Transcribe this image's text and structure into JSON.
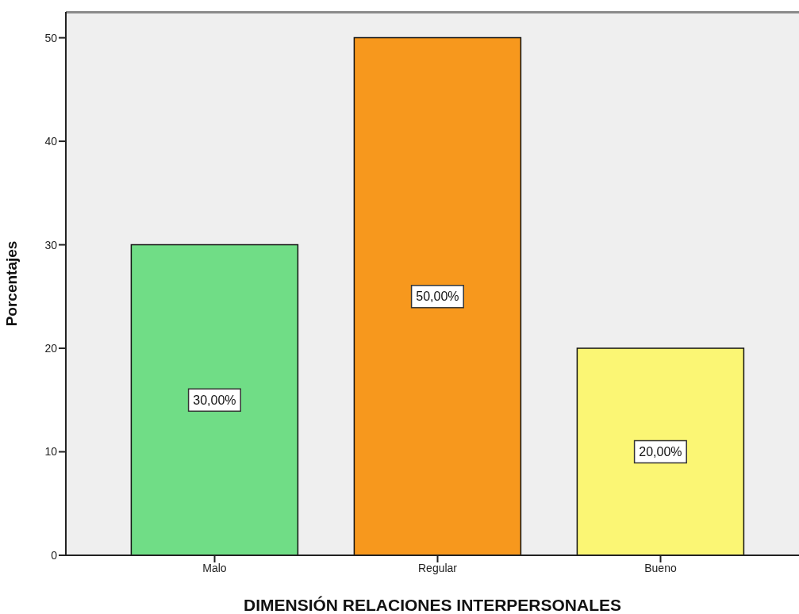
{
  "chart_data": {
    "type": "bar",
    "xlabel": "DIMENSIÓN RELACIONES INTERPERSONALES",
    "ylabel": "Porcentajes",
    "categories": [
      "Malo",
      "Regular",
      "Bueno"
    ],
    "values": [
      30,
      50,
      20
    ],
    "colors": [
      "#70dd86",
      "#f7981d",
      "#fbf674"
    ],
    "value_labels": [
      "30,00%",
      "50,00%",
      "20,00%"
    ],
    "ylim": [
      0,
      52.5
    ],
    "yticks": [
      0,
      10,
      20,
      30,
      40,
      50
    ]
  }
}
